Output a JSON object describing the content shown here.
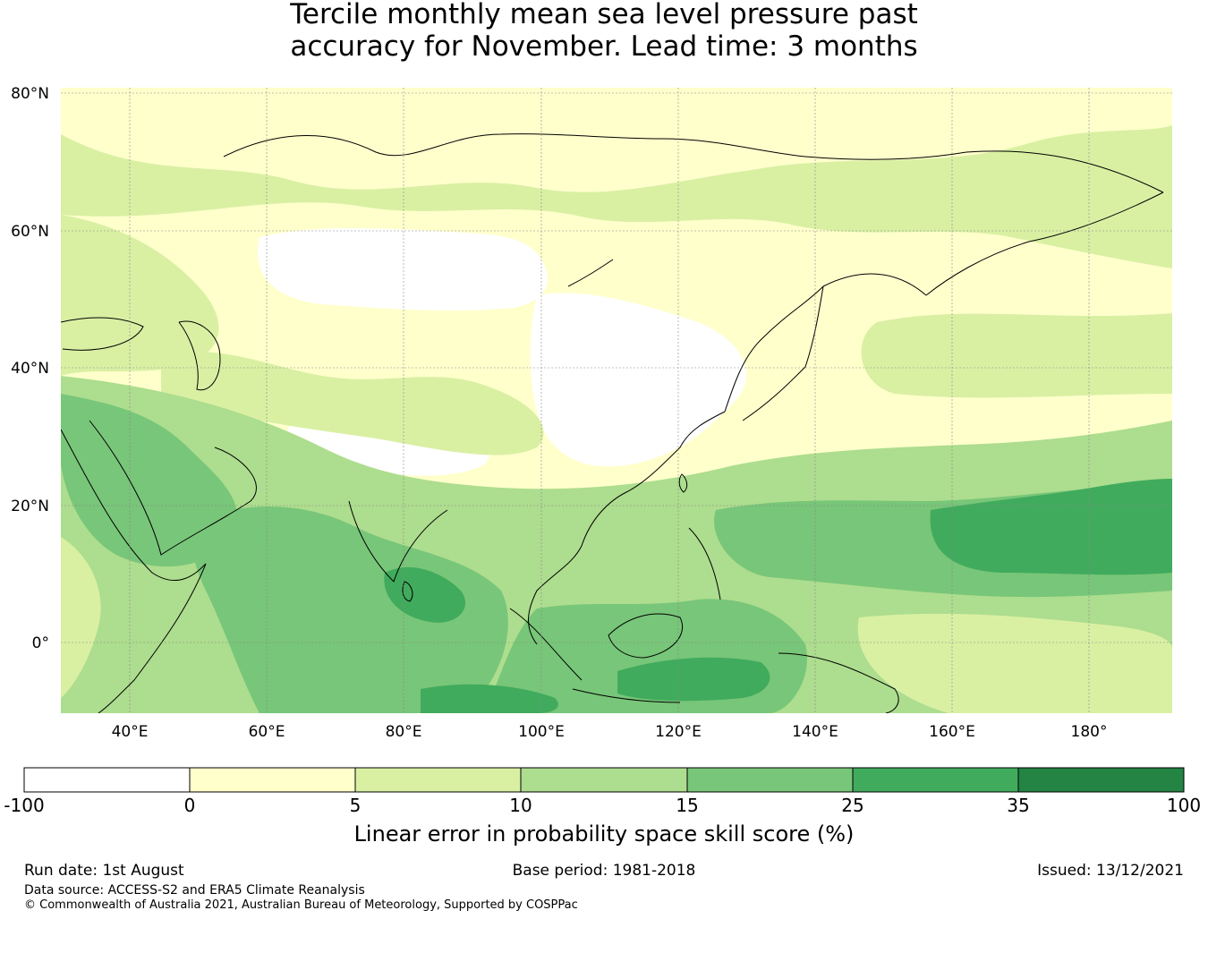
{
  "title": {
    "line1": "Tercile monthly mean sea level pressure past",
    "line2": "accuracy for November. Lead time: 3 months"
  },
  "map": {
    "lat_labels": [
      "80°N",
      "60°N",
      "40°N",
      "20°N",
      "0°"
    ],
    "lon_labels": [
      "40°E",
      "60°E",
      "80°E",
      "100°E",
      "120°E",
      "140°E",
      "160°E",
      "180°"
    ],
    "regions": [
      {
        "name": "north-band",
        "level": "0-5"
      },
      {
        "name": "siberia-band",
        "level": "5-10"
      },
      {
        "name": "central-asia-white",
        "level": "-100-0"
      },
      {
        "name": "north-china-white",
        "level": "-100-0"
      },
      {
        "name": "arabia",
        "level": "15-25"
      },
      {
        "name": "indian-ocean",
        "level": "15-25"
      },
      {
        "name": "bay-of-bengal",
        "level": "25-35"
      },
      {
        "name": "west-pacific",
        "level": "15-25"
      },
      {
        "name": "central-pacific",
        "level": "25-35"
      },
      {
        "name": "indonesia-sea",
        "level": "25-35"
      },
      {
        "name": "equatorial-pacific",
        "level": "10-15"
      }
    ],
    "colors": {
      "land_outline": "#000000",
      "grid": "#888888"
    }
  },
  "colorbar": {
    "ticks": [
      "-100",
      "0",
      "5",
      "10",
      "15",
      "25",
      "35",
      "100"
    ],
    "colors": [
      "#ffffff",
      "#ffffcc",
      "#d9f0a3",
      "#addd8e",
      "#78c679",
      "#41ab5d",
      "#238443"
    ],
    "title": "Linear error in probability space skill score (%)"
  },
  "footer": {
    "run_date": "Run date: 1st August",
    "base_period": "Base period: 1981-2018",
    "issued": "Issued: 13/12/2021",
    "data_source": "Data source: ACCESS-S2 and ERA5 Climate Reanalysis",
    "copyright": "© Commonwealth of Australia 2021, Australian Bureau of Meteorology, Supported by COSPPac"
  }
}
